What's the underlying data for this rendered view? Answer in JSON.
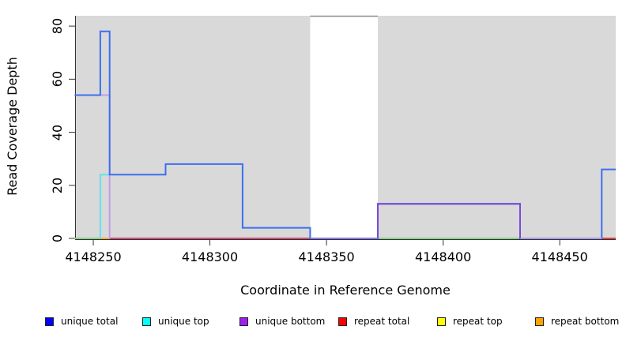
{
  "figure": {
    "background": "#ffffff",
    "plot_background": "#d9d9d9",
    "gap_band_fill": "#ffffff",
    "gap_band_top_border": "#8a8a8a",
    "axis_color": "#333333"
  },
  "chart_data": {
    "type": "line",
    "subtype": "step-coverage-plot",
    "title": "",
    "xlabel": "Coordinate in Reference Genome",
    "ylabel": "Read Coverage Depth",
    "xlim": [
      4148242.2,
      4148474
    ],
    "ylim": [
      0,
      83.9
    ],
    "x_tick_values": [
      4148250,
      4148300,
      4148350,
      4148400,
      4148450
    ],
    "x_tick_labels": [
      "4148250",
      "4148300",
      "4148350",
      "4148400",
      "4148450"
    ],
    "y_tick_values": [
      0,
      20,
      40,
      60,
      80
    ],
    "y_tick_labels": [
      "0",
      "20",
      "40",
      "60",
      "80"
    ],
    "grid": false,
    "legend_position": "bottom",
    "gap_region": [
      4148343,
      4148372
    ],
    "series": [
      {
        "name": "unique total",
        "color": "#0000FF",
        "points": [
          [
            4148242,
            54
          ],
          [
            4148253,
            54
          ],
          [
            4148253,
            78
          ],
          [
            4148257,
            78
          ],
          [
            4148257,
            24
          ],
          [
            4148281,
            24
          ],
          [
            4148281,
            28
          ],
          [
            4148314,
            28
          ],
          [
            4148314,
            4
          ],
          [
            4148343,
            4
          ],
          [
            4148343,
            0
          ],
          [
            4148372,
            0
          ],
          [
            4148372,
            13
          ],
          [
            4148433,
            13
          ],
          [
            4148433,
            0
          ],
          [
            4148468,
            0
          ],
          [
            4148468,
            26
          ],
          [
            4148474,
            26
          ]
        ]
      },
      {
        "name": "unique top",
        "color": "#00FFFF",
        "points": [
          [
            4148242,
            0
          ],
          [
            4148253,
            0
          ],
          [
            4148253,
            24
          ],
          [
            4148281,
            24
          ],
          [
            4148281,
            28
          ],
          [
            4148314,
            28
          ],
          [
            4148314,
            4
          ],
          [
            4148343,
            4
          ],
          [
            4148343,
            0
          ],
          [
            4148474,
            0
          ]
        ]
      },
      {
        "name": "unique bottom",
        "color": "#A020F0",
        "points": [
          [
            4148242,
            54
          ],
          [
            4148257,
            54
          ],
          [
            4148257,
            0
          ],
          [
            4148372,
            0
          ],
          [
            4148372,
            13
          ],
          [
            4148433,
            13
          ],
          [
            4148433,
            0
          ],
          [
            4148474,
            0
          ]
        ]
      },
      {
        "name": "repeat total",
        "color": "#FF0000",
        "points": [
          [
            4148242,
            0
          ],
          [
            4148474,
            0
          ]
        ]
      },
      {
        "name": "repeat top",
        "color": "#FFFF00",
        "points": [
          [
            4148242,
            0
          ],
          [
            4148474,
            0
          ]
        ]
      },
      {
        "name": "repeat bottom",
        "color": "#FFA500",
        "points": [
          [
            4148242,
            0
          ],
          [
            4148474,
            0
          ]
        ]
      }
    ],
    "rendered_segments": [
      {
        "name": "zero-line-green-left",
        "color": "#8CCF8C",
        "points": [
          [
            4148242,
            0
          ],
          [
            4148253,
            0
          ]
        ]
      },
      {
        "name": "zero-line-orange",
        "color": "#FFAB45",
        "points": [
          [
            4148253,
            0
          ],
          [
            4148257,
            0
          ]
        ]
      },
      {
        "name": "zero-line-pink",
        "color": "#D14C72",
        "points": [
          [
            4148257,
            0
          ],
          [
            4148343,
            0
          ]
        ]
      },
      {
        "name": "zero-line-green-right",
        "color": "#8CCF8C",
        "points": [
          [
            4148372,
            0
          ],
          [
            4148433,
            0
          ]
        ]
      },
      {
        "name": "zero-line-red-right",
        "color": "#E04545",
        "points": [
          [
            4148468,
            0
          ],
          [
            4148474,
            0
          ]
        ]
      },
      {
        "name": "unique-top-rise",
        "color": "#5FE3EC",
        "points": [
          [
            4148253,
            0
          ],
          [
            4148253,
            24
          ],
          [
            4148257,
            24
          ]
        ]
      },
      {
        "name": "unique-bottom-left",
        "color": "#C49BE8",
        "points": [
          [
            4148242,
            54
          ],
          [
            4148257,
            54
          ],
          [
            4148257,
            0
          ]
        ]
      },
      {
        "name": "unique-total-line",
        "color": "#3B6FEF",
        "points": [
          [
            4148242,
            54
          ],
          [
            4148253,
            54
          ],
          [
            4148253,
            78
          ],
          [
            4148257,
            78
          ],
          [
            4148257,
            24
          ],
          [
            4148281,
            24
          ],
          [
            4148281,
            28
          ],
          [
            4148314,
            28
          ],
          [
            4148314,
            4
          ],
          [
            4148343,
            4
          ],
          [
            4148343,
            0
          ],
          [
            4148372,
            0
          ],
          [
            4148372,
            13
          ],
          [
            4148433,
            13
          ],
          [
            4148433,
            0
          ],
          [
            4148468,
            0
          ],
          [
            4148468,
            26
          ],
          [
            4148474,
            26
          ]
        ]
      },
      {
        "name": "zero-line-violet-band",
        "color": "#8678E8",
        "points": [
          [
            4148343,
            0
          ],
          [
            4148372,
            0
          ]
        ]
      },
      {
        "name": "zero-line-lavender",
        "color": "#A89CEC",
        "points": [
          [
            4148433,
            0
          ],
          [
            4148468,
            0
          ]
        ]
      },
      {
        "name": "unique-bottom-right",
        "color": "#7A48DA",
        "points": [
          [
            4148372,
            0
          ],
          [
            4148372,
            13
          ],
          [
            4148433,
            13
          ],
          [
            4148433,
            0
          ]
        ]
      }
    ],
    "legend": [
      {
        "label": "unique total",
        "color": "#0000FF"
      },
      {
        "label": "unique top",
        "color": "#00FFFF"
      },
      {
        "label": "unique bottom",
        "color": "#A020F0"
      },
      {
        "label": "repeat total",
        "color": "#FF0000"
      },
      {
        "label": "repeat top",
        "color": "#FFFF00"
      },
      {
        "label": "repeat bottom",
        "color": "#FFA500"
      }
    ]
  }
}
